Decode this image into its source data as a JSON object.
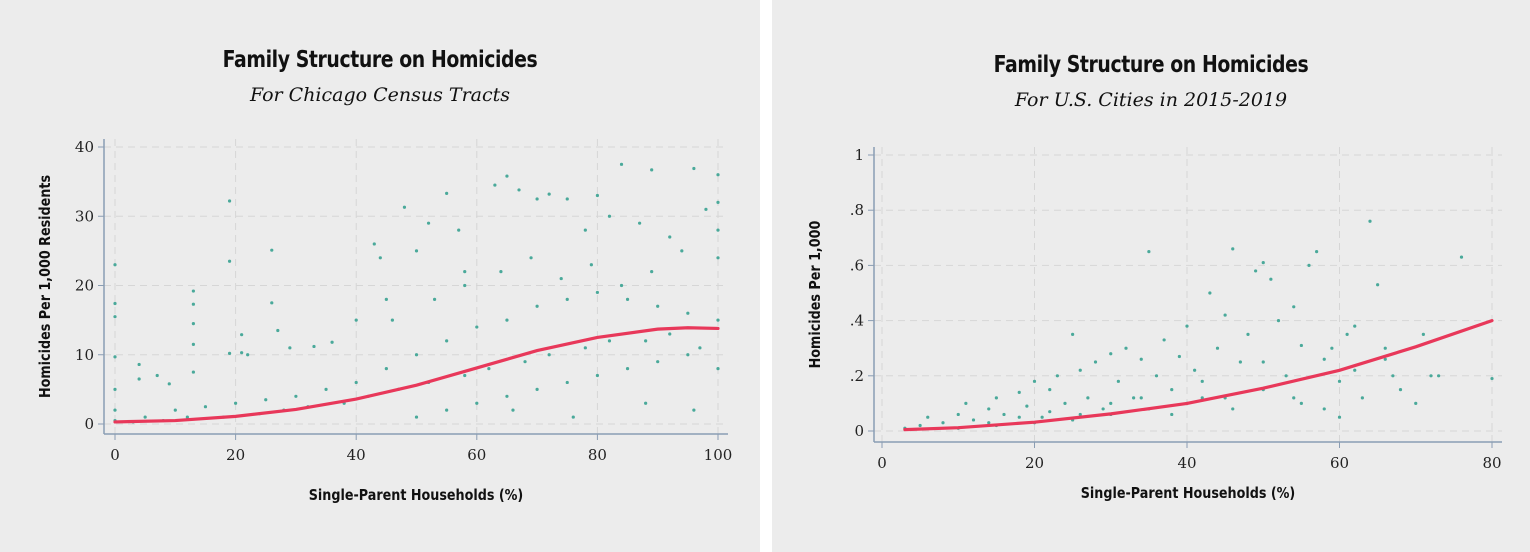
{
  "colors": {
    "points": "#4aa99a",
    "fit": "#e8385a",
    "axis": "#8a9db3",
    "grid": "#d6d6d6"
  },
  "chart_data": [
    {
      "type": "scatter",
      "title": "Family Structure on Homicides",
      "subtitle": "For Chicago Census Tracts",
      "xlabel": "Single-Parent Households (%)",
      "ylabel": "Homicides Per 1,000 Residents",
      "xlim": [
        0,
        100
      ],
      "ylim": [
        0,
        40
      ],
      "xticks": [
        0,
        20,
        40,
        60,
        80,
        100
      ],
      "yticks": [
        0,
        10,
        20,
        30,
        40
      ],
      "grid": true,
      "points": [
        [
          0,
          23
        ],
        [
          0,
          17.4
        ],
        [
          0,
          15.5
        ],
        [
          0,
          9.7
        ],
        [
          0,
          5
        ],
        [
          0,
          2
        ],
        [
          0,
          0.5
        ],
        [
          4,
          8.6
        ],
        [
          4,
          6.5
        ],
        [
          7,
          7
        ],
        [
          9,
          5.8
        ],
        [
          13,
          19.2
        ],
        [
          13,
          17.3
        ],
        [
          13,
          14.5
        ],
        [
          13,
          11.5
        ],
        [
          13,
          7.5
        ],
        [
          19,
          32.2
        ],
        [
          19,
          23.5
        ],
        [
          19,
          10.2
        ],
        [
          21,
          12.9
        ],
        [
          21,
          10.3
        ],
        [
          22,
          10
        ],
        [
          26,
          25.1
        ],
        [
          26,
          17.5
        ],
        [
          27,
          13.5
        ],
        [
          29,
          11
        ],
        [
          33,
          11.2
        ],
        [
          36,
          11.8
        ],
        [
          40,
          15
        ],
        [
          43,
          26
        ],
        [
          44,
          24
        ],
        [
          45,
          18
        ],
        [
          48,
          31.3
        ],
        [
          50,
          25
        ],
        [
          52,
          29
        ],
        [
          55,
          33.3
        ],
        [
          57,
          28
        ],
        [
          58,
          22
        ],
        [
          63,
          34.5
        ],
        [
          65,
          35.8
        ],
        [
          67,
          33.8
        ],
        [
          70,
          32.5
        ],
        [
          72,
          33.2
        ],
        [
          75,
          32.5
        ],
        [
          78,
          28
        ],
        [
          80,
          33
        ],
        [
          82,
          30
        ],
        [
          84,
          37.5
        ],
        [
          87,
          29
        ],
        [
          89,
          36.7
        ],
        [
          92,
          27
        ],
        [
          96,
          36.9
        ],
        [
          98,
          31
        ],
        [
          100,
          36
        ],
        [
          100,
          32
        ],
        [
          100,
          28
        ],
        [
          100,
          24
        ],
        [
          100,
          15
        ],
        [
          100,
          8
        ],
        [
          96,
          2
        ],
        [
          88,
          3
        ],
        [
          76,
          1
        ],
        [
          66,
          2
        ],
        [
          5,
          1
        ],
        [
          10,
          2
        ],
        [
          15,
          2.5
        ],
        [
          20,
          3
        ],
        [
          25,
          3.5
        ],
        [
          30,
          4
        ],
        [
          35,
          5
        ],
        [
          40,
          6
        ],
        [
          45,
          8
        ],
        [
          50,
          10
        ],
        [
          55,
          12
        ],
        [
          60,
          14
        ],
        [
          65,
          15
        ],
        [
          70,
          17
        ],
        [
          75,
          18
        ],
        [
          80,
          19
        ],
        [
          85,
          18
        ],
        [
          90,
          17
        ],
        [
          95,
          16
        ],
        [
          3,
          0.3
        ],
        [
          8,
          0.5
        ],
        [
          12,
          1
        ],
        [
          18,
          1
        ],
        [
          24,
          1.5
        ],
        [
          28,
          2
        ],
        [
          32,
          2.5
        ],
        [
          38,
          3
        ],
        [
          42,
          4
        ],
        [
          47,
          5
        ],
        [
          52,
          6
        ],
        [
          58,
          7
        ],
        [
          62,
          8
        ],
        [
          68,
          9
        ],
        [
          72,
          10
        ],
        [
          78,
          11
        ],
        [
          82,
          12
        ],
        [
          88,
          12
        ],
        [
          92,
          13
        ],
        [
          97,
          11
        ],
        [
          50,
          1
        ],
        [
          55,
          2
        ],
        [
          60,
          3
        ],
        [
          65,
          4
        ],
        [
          70,
          5
        ],
        [
          75,
          6
        ],
        [
          80,
          7
        ],
        [
          85,
          8
        ],
        [
          90,
          9
        ],
        [
          95,
          10
        ],
        [
          46,
          15
        ],
        [
          53,
          18
        ],
        [
          58,
          20
        ],
        [
          64,
          22
        ],
        [
          69,
          24
        ],
        [
          74,
          21
        ],
        [
          79,
          23
        ],
        [
          84,
          20
        ],
        [
          89,
          22
        ],
        [
          94,
          25
        ]
      ],
      "fit": {
        "x": [
          0,
          10,
          20,
          30,
          40,
          50,
          60,
          70,
          80,
          90,
          95,
          100
        ],
        "y": [
          0.3,
          0.5,
          1.1,
          2.1,
          3.6,
          5.6,
          8.1,
          10.6,
          12.5,
          13.7,
          13.9,
          13.8
        ]
      }
    },
    {
      "type": "scatter",
      "title": "Family Structure on Homicides",
      "subtitle": "For U.S. Cities in 2015-2019",
      "xlabel": "Single-Parent Households (%)",
      "ylabel": "Homicides Per 1,000",
      "xlim": [
        0,
        80
      ],
      "ylim": [
        0,
        1
      ],
      "xticks": [
        0,
        20,
        40,
        60,
        80
      ],
      "yticks": [
        0,
        0.2,
        0.4,
        0.6,
        0.8,
        1
      ],
      "ytick_labels": [
        "0",
        ".2",
        ".4",
        ".6",
        ".8",
        "1"
      ],
      "grid": true,
      "points": [
        [
          3,
          0.01
        ],
        [
          5,
          0.02
        ],
        [
          6,
          0.05
        ],
        [
          8,
          0.03
        ],
        [
          10,
          0.06
        ],
        [
          11,
          0.1
        ],
        [
          12,
          0.04
        ],
        [
          14,
          0.08
        ],
        [
          15,
          0.12
        ],
        [
          16,
          0.06
        ],
        [
          18,
          0.14
        ],
        [
          19,
          0.09
        ],
        [
          20,
          0.18
        ],
        [
          21,
          0.05
        ],
        [
          22,
          0.15
        ],
        [
          23,
          0.2
        ],
        [
          24,
          0.1
        ],
        [
          25,
          0.35
        ],
        [
          26,
          0.22
        ],
        [
          27,
          0.12
        ],
        [
          28,
          0.25
        ],
        [
          29,
          0.08
        ],
        [
          30,
          0.28
        ],
        [
          31,
          0.18
        ],
        [
          32,
          0.3
        ],
        [
          33,
          0.12
        ],
        [
          34,
          0.26
        ],
        [
          35,
          0.65
        ],
        [
          36,
          0.2
        ],
        [
          37,
          0.33
        ],
        [
          38,
          0.15
        ],
        [
          39,
          0.27
        ],
        [
          40,
          0.38
        ],
        [
          41,
          0.22
        ],
        [
          42,
          0.12
        ],
        [
          43,
          0.5
        ],
        [
          44,
          0.3
        ],
        [
          45,
          0.42
        ],
        [
          46,
          0.66
        ],
        [
          47,
          0.25
        ],
        [
          48,
          0.35
        ],
        [
          49,
          0.58
        ],
        [
          50,
          0.61
        ],
        [
          51,
          0.55
        ],
        [
          52,
          0.4
        ],
        [
          53,
          0.2
        ],
        [
          54,
          0.45
        ],
        [
          55,
          0.31
        ],
        [
          56,
          0.6
        ],
        [
          57,
          0.65
        ],
        [
          58,
          0.26
        ],
        [
          59,
          0.3
        ],
        [
          60,
          0.18
        ],
        [
          61,
          0.35
        ],
        [
          62,
          0.38
        ],
        [
          63,
          0.12
        ],
        [
          64,
          0.76
        ],
        [
          65,
          0.53
        ],
        [
          66,
          0.3
        ],
        [
          67,
          0.2
        ],
        [
          68,
          0.15
        ],
        [
          70,
          0.1
        ],
        [
          71,
          0.35
        ],
        [
          73,
          0.2
        ],
        [
          76,
          0.63
        ],
        [
          80,
          0.19
        ],
        [
          10,
          0.01
        ],
        [
          15,
          0.02
        ],
        [
          20,
          0.03
        ],
        [
          25,
          0.04
        ],
        [
          30,
          0.06
        ],
        [
          35,
          0.08
        ],
        [
          40,
          0.1
        ],
        [
          45,
          0.12
        ],
        [
          50,
          0.15
        ],
        [
          55,
          0.1
        ],
        [
          60,
          0.05
        ],
        [
          14,
          0.03
        ],
        [
          18,
          0.05
        ],
        [
          22,
          0.07
        ],
        [
          26,
          0.06
        ],
        [
          30,
          0.1
        ],
        [
          34,
          0.12
        ],
        [
          38,
          0.06
        ],
        [
          42,
          0.18
        ],
        [
          46,
          0.08
        ],
        [
          50,
          0.25
        ],
        [
          54,
          0.12
        ],
        [
          58,
          0.08
        ],
        [
          62,
          0.22
        ],
        [
          66,
          0.26
        ],
        [
          72,
          0.2
        ]
      ],
      "fit": {
        "x": [
          3,
          10,
          20,
          30,
          40,
          50,
          60,
          70,
          80
        ],
        "y": [
          0.005,
          0.012,
          0.032,
          0.062,
          0.1,
          0.155,
          0.22,
          0.305,
          0.4
        ]
      }
    }
  ]
}
